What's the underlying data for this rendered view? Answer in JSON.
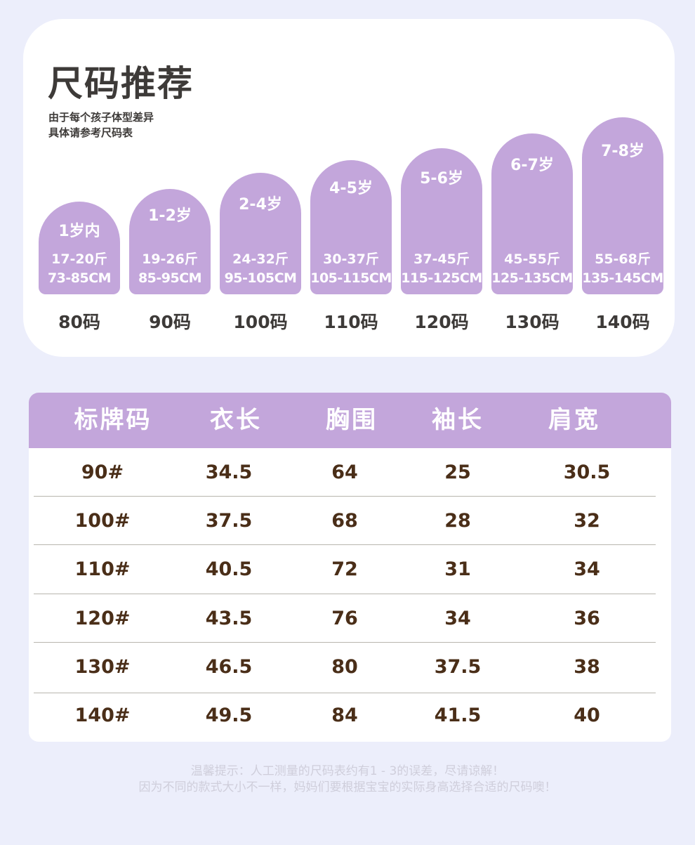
{
  "header": {
    "title": "尺码推荐",
    "subtitle_line1": "由于每个孩子体型差异",
    "subtitle_line2": "具体请参考尺码表"
  },
  "recommendations": [
    {
      "age": "1岁内",
      "weight": "17-20斤",
      "height": "73-85CM",
      "size": "80码"
    },
    {
      "age": "1-2岁",
      "weight": "19-26斤",
      "height": "85-95CM",
      "size": "90码"
    },
    {
      "age": "2-4岁",
      "weight": "24-32斤",
      "height": "95-105CM",
      "size": "100码"
    },
    {
      "age": "4-5岁",
      "weight": "30-37斤",
      "height": "105-115CM",
      "size": "110码"
    },
    {
      "age": "5-6岁",
      "weight": "37-45斤",
      "height": "115-125CM",
      "size": "120码"
    },
    {
      "age": "6-7岁",
      "weight": "45-55斤",
      "height": "125-135CM",
      "size": "130码"
    },
    {
      "age": "7-8岁",
      "weight": "55-68斤",
      "height": "135-145CM",
      "size": "140码"
    }
  ],
  "table": {
    "headers": [
      "标牌码",
      "衣长",
      "胸围",
      "袖长",
      "肩宽"
    ],
    "rows": [
      [
        "90#",
        "34.5",
        "64",
        "25",
        "30.5"
      ],
      [
        "100#",
        "37.5",
        "68",
        "28",
        "32"
      ],
      [
        "110#",
        "40.5",
        "72",
        "31",
        "34"
      ],
      [
        "120#",
        "43.5",
        "76",
        "34",
        "36"
      ],
      [
        "130#",
        "46.5",
        "80",
        "37.5",
        "38"
      ],
      [
        "140#",
        "49.5",
        "84",
        "41.5",
        "40"
      ]
    ]
  },
  "notes": {
    "line1": "温馨提示：人工测量的尺码表约有1 - 3的误差，尽请谅解！",
    "line2": "因为不同的款式大小不一样，妈妈们要根据宝宝的实际身高选择合适的尺码噢！"
  },
  "colors": {
    "accent": "#c3a6db",
    "text_dark": "#3d3a38",
    "table_text": "#4a2e18",
    "background": "#eceefb"
  }
}
